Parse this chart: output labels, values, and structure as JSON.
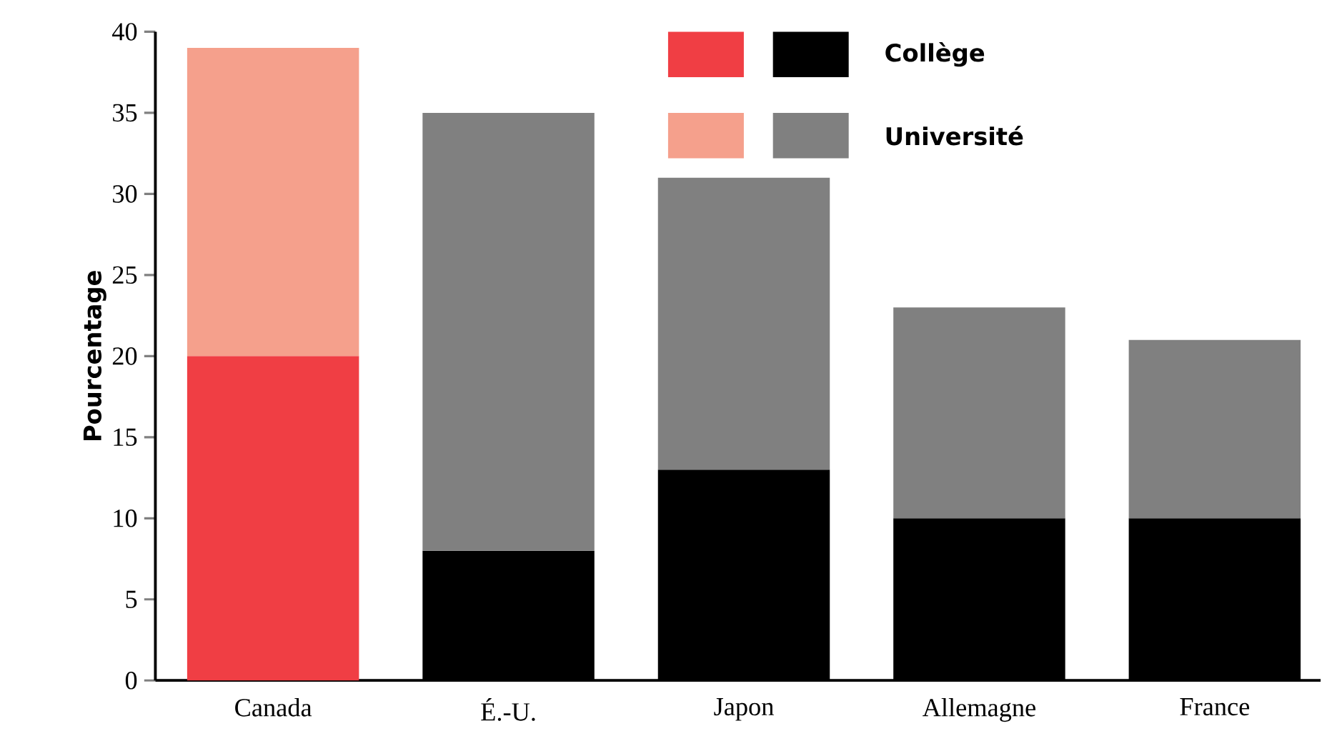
{
  "chart_data": {
    "type": "bar",
    "stacked": true,
    "ylabel": "Pourcentage",
    "categories": [
      "Canada",
      "É.-U.",
      "Japon",
      "Allemagne",
      "France"
    ],
    "series": [
      {
        "name": "Collège",
        "color": "#000000",
        "colors": [
          "#f03e44",
          "#000000",
          "#000000",
          "#000000",
          "#000000"
        ],
        "values": [
          20,
          8,
          13,
          10,
          10
        ]
      },
      {
        "name": "Université",
        "color": "#808080",
        "colors": [
          "#f5a08c",
          "#808080",
          "#808080",
          "#808080",
          "#808080"
        ],
        "values": [
          19,
          27,
          18,
          13,
          11
        ]
      }
    ],
    "ylim": [
      0,
      40
    ],
    "yticks": [
      0,
      5,
      10,
      15,
      20,
      25,
      30,
      35,
      40
    ],
    "grid": false,
    "legend": "top right"
  }
}
